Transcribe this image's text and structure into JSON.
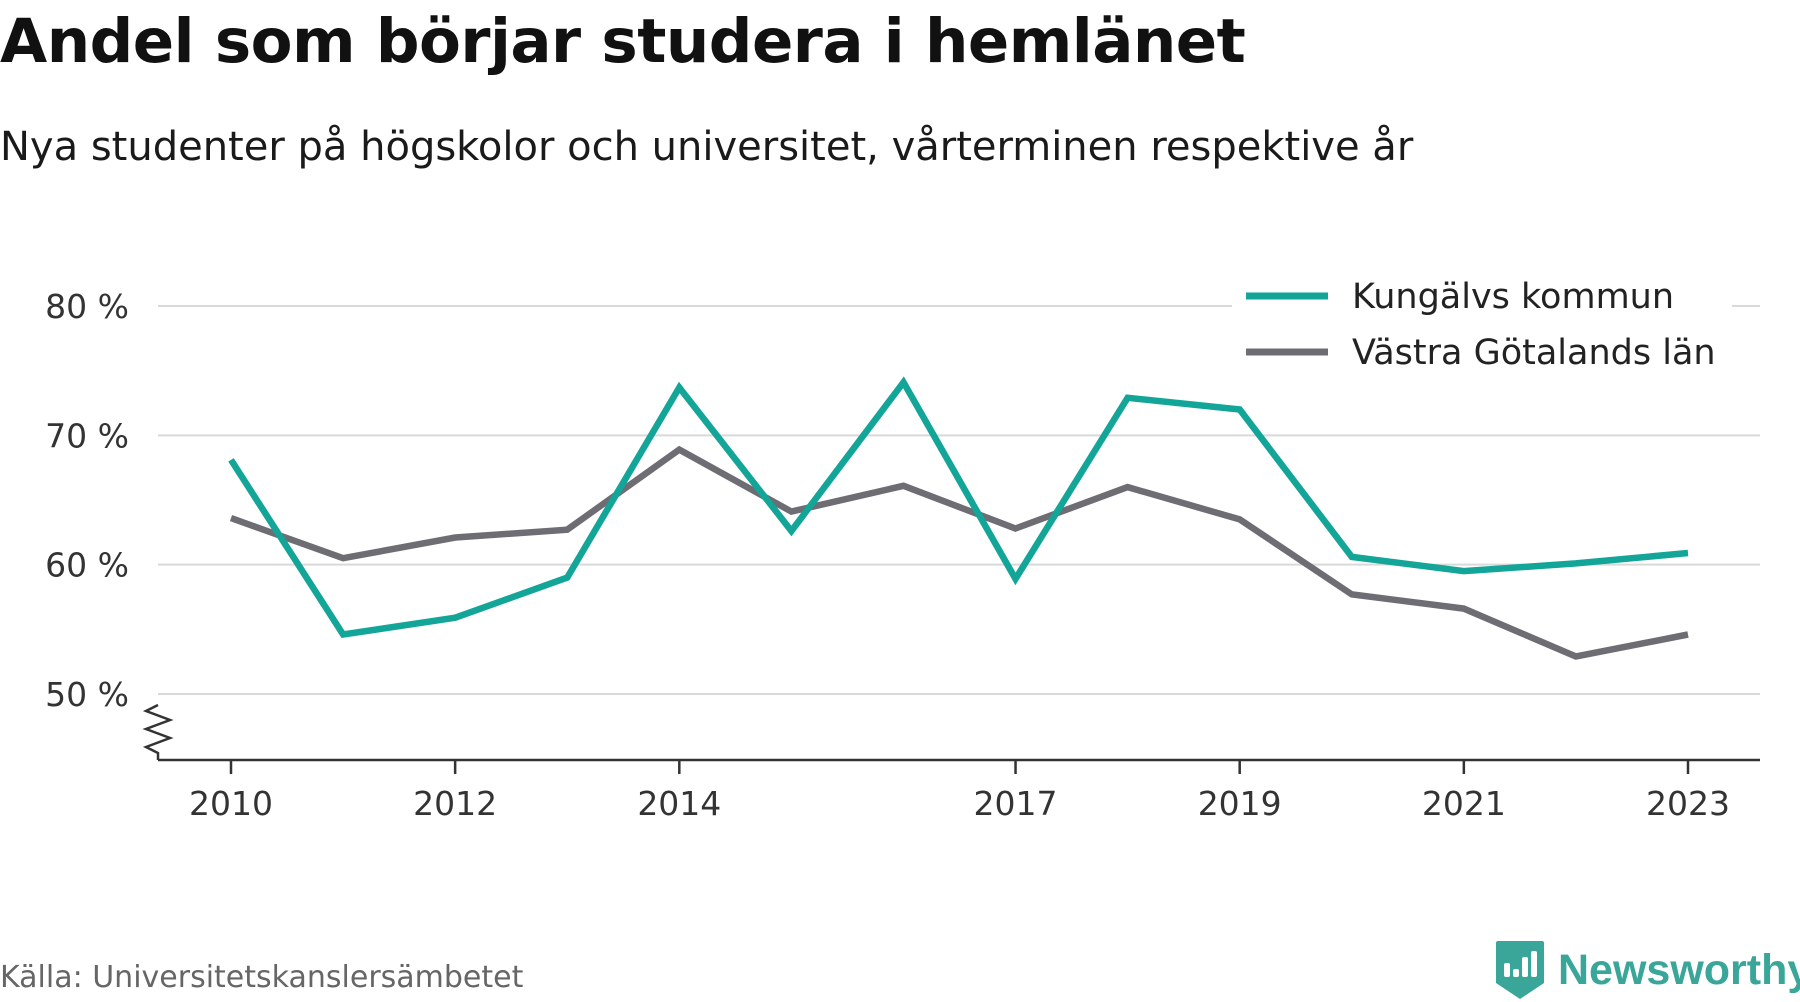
{
  "title": "Andel som börjar studera i hemlänet",
  "subtitle": "Nya studenter på högskolor och universitet, vårterminen respektive år",
  "source": "Källa: Universitetskanslersämbetet",
  "brand": "Newsworthy",
  "colors": {
    "kungalv": "#12a598",
    "vastra": "#6e6d73",
    "grid": "#d9d9d9",
    "axis": "#333333",
    "brand": "#3aa69a"
  },
  "chart_data": {
    "type": "line",
    "title": "Andel som börjar studera i hemlänet",
    "subtitle": "Nya studenter på högskolor och universitet, vårterminen respektive år",
    "x": [
      2010,
      2011,
      2012,
      2013,
      2014,
      2015,
      2016,
      2017,
      2018,
      2019,
      2020,
      2021,
      2022,
      2023
    ],
    "x_tick_labels": [
      "2010",
      "2012",
      "2014",
      "2017",
      "2019",
      "2021",
      "2023"
    ],
    "x_tick_values": [
      2010,
      2012,
      2014,
      2017,
      2019,
      2021,
      2023
    ],
    "y_tick_labels": [
      "80 %",
      "70 %",
      "60 %",
      "50 %"
    ],
    "y_tick_values": [
      80,
      70,
      60,
      50
    ],
    "ylim": [
      45,
      82
    ],
    "y_axis_break": true,
    "grid": true,
    "legend_position": "top-right",
    "series": [
      {
        "name": "Kungälvs kommun",
        "color": "#12a598",
        "values": [
          68.1,
          54.6,
          55.9,
          59.0,
          73.7,
          62.6,
          74.1,
          58.9,
          72.9,
          72.0,
          60.6,
          59.5,
          60.1,
          60.9
        ]
      },
      {
        "name": "Västra Götalands län",
        "color": "#6e6d73",
        "values": [
          63.6,
          60.5,
          62.1,
          62.7,
          68.9,
          64.1,
          66.1,
          62.8,
          66.0,
          63.5,
          57.7,
          56.6,
          52.9,
          54.6
        ]
      }
    ]
  }
}
